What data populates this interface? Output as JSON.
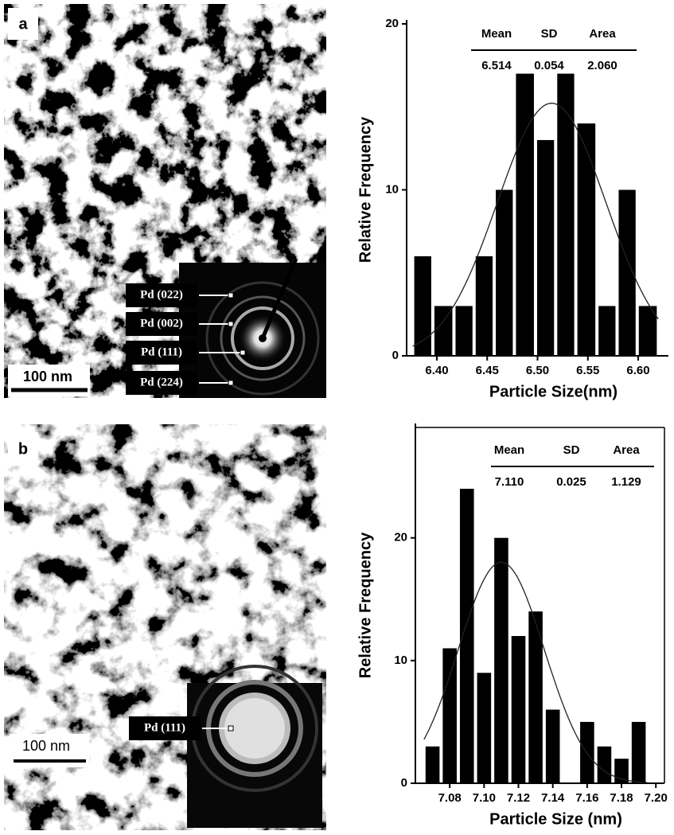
{
  "panels": [
    {
      "label": "a",
      "scale_bar": "100 nm",
      "diffraction_labels": [
        "Pd (022)",
        "Pd (002)",
        "Pd (111)",
        "Pd (224)"
      ]
    },
    {
      "label": "b",
      "scale_bar": "100 nm",
      "diffraction_labels": [
        "Pd (111)"
      ]
    }
  ],
  "chart_data": [
    {
      "type": "histogram",
      "x_label": "Particle Size(nm)",
      "y_label": "Relative Frequency",
      "bins": [
        6.376,
        6.396,
        6.417,
        6.437,
        6.457,
        6.477,
        6.498,
        6.518,
        6.538,
        6.559,
        6.579,
        6.599,
        6.62
      ],
      "values": [
        6,
        3,
        3,
        6,
        10,
        17,
        13,
        17,
        14,
        3,
        10,
        3
      ],
      "color": "#000000",
      "xlim": [
        6.37,
        6.63
      ],
      "xticks": [
        {
          "value": 6.4,
          "label": "6.40"
        },
        {
          "value": 6.45,
          "label": "6.45"
        },
        {
          "value": 6.5,
          "label": "6.50"
        },
        {
          "value": 6.55,
          "label": "6.55"
        },
        {
          "value": 6.6,
          "label": "6.60"
        }
      ],
      "ylim": [
        0,
        20
      ],
      "yticks": [
        0,
        10,
        20
      ],
      "stats": {
        "headers": [
          "Mean",
          "SD",
          "Area"
        ],
        "values": [
          6.514,
          0.054,
          2.06
        ],
        "value_labels": [
          "6.514",
          "0.054",
          "2.060"
        ]
      }
    },
    {
      "type": "histogram",
      "x_label": "Particle Size (nm)",
      "y_label": "Relative Frequency",
      "bins": [
        7.065,
        7.075,
        7.085,
        7.095,
        7.105,
        7.115,
        7.125,
        7.135,
        7.145,
        7.155,
        7.165,
        7.175,
        7.185,
        7.195
      ],
      "values": [
        3,
        11,
        24,
        9,
        20,
        12,
        14,
        6,
        0,
        5,
        3,
        2,
        5
      ],
      "color": "#000000",
      "xlim": [
        7.06,
        7.205
      ],
      "xticks": [
        {
          "value": 7.08,
          "label": "7.08"
        },
        {
          "value": 7.1,
          "label": "7.10"
        },
        {
          "value": 7.12,
          "label": "7.12"
        },
        {
          "value": 7.14,
          "label": "7.14"
        },
        {
          "value": 7.16,
          "label": "7.16"
        },
        {
          "value": 7.18,
          "label": "7.18"
        },
        {
          "value": 7.2,
          "label": "7.20"
        }
      ],
      "ylim": [
        0,
        29
      ],
      "yticks": [
        0,
        10,
        20
      ],
      "stats": {
        "headers": [
          "Mean",
          "SD",
          "Area"
        ],
        "values": [
          7.11,
          0.025,
          1.129
        ],
        "value_labels": [
          "7.110",
          "0.025",
          "1.129"
        ]
      }
    }
  ]
}
